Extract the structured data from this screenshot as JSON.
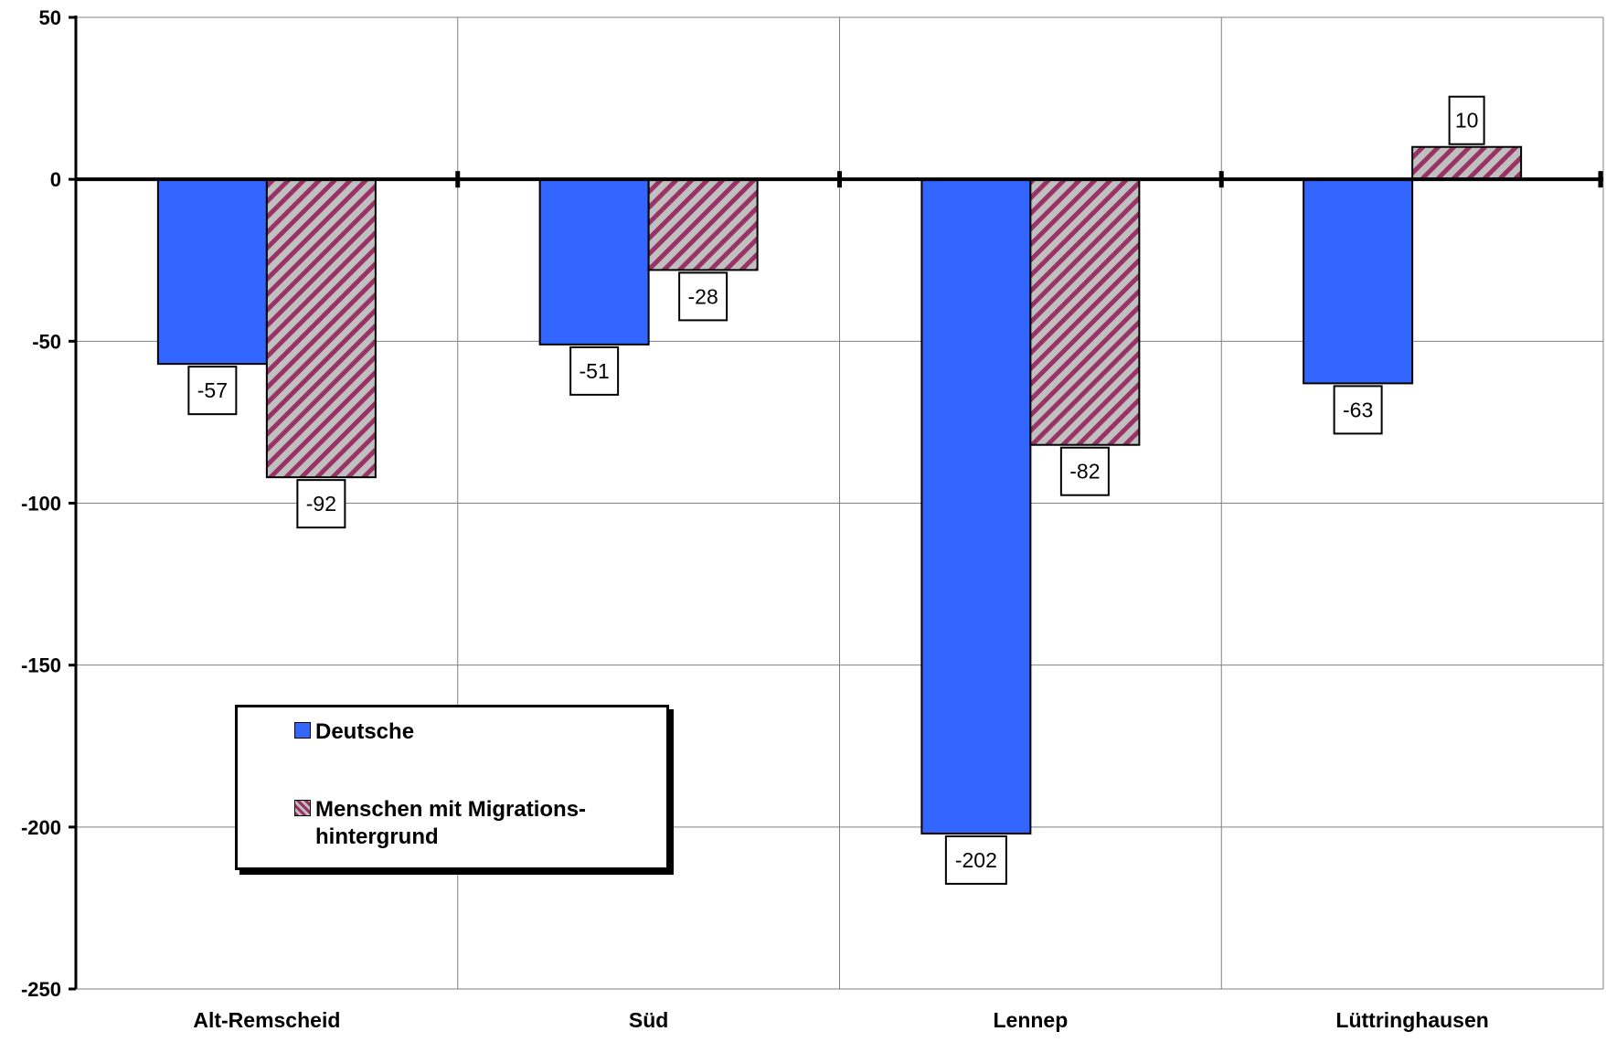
{
  "chart_data": {
    "type": "bar",
    "categories": [
      "Alt-Remscheid",
      "Süd",
      "Lennep",
      "Lüttringhausen"
    ],
    "series": [
      {
        "name": "Deutsche",
        "values": [
          -57,
          -51,
          -202,
          -63
        ],
        "color": "#3366ff",
        "pattern": "solid"
      },
      {
        "name": "Menschen mit Migrations-\nhintergrund",
        "values": [
          -92,
          -28,
          -82,
          10
        ],
        "color": "#993366",
        "pattern": "diagonal-stripes"
      }
    ],
    "ylim": [
      -250,
      50
    ],
    "yticks": [
      50,
      0,
      -50,
      -100,
      -150,
      -200,
      -250
    ],
    "grid": true,
    "legend_position": "bottom-left",
    "data_labels": true
  }
}
